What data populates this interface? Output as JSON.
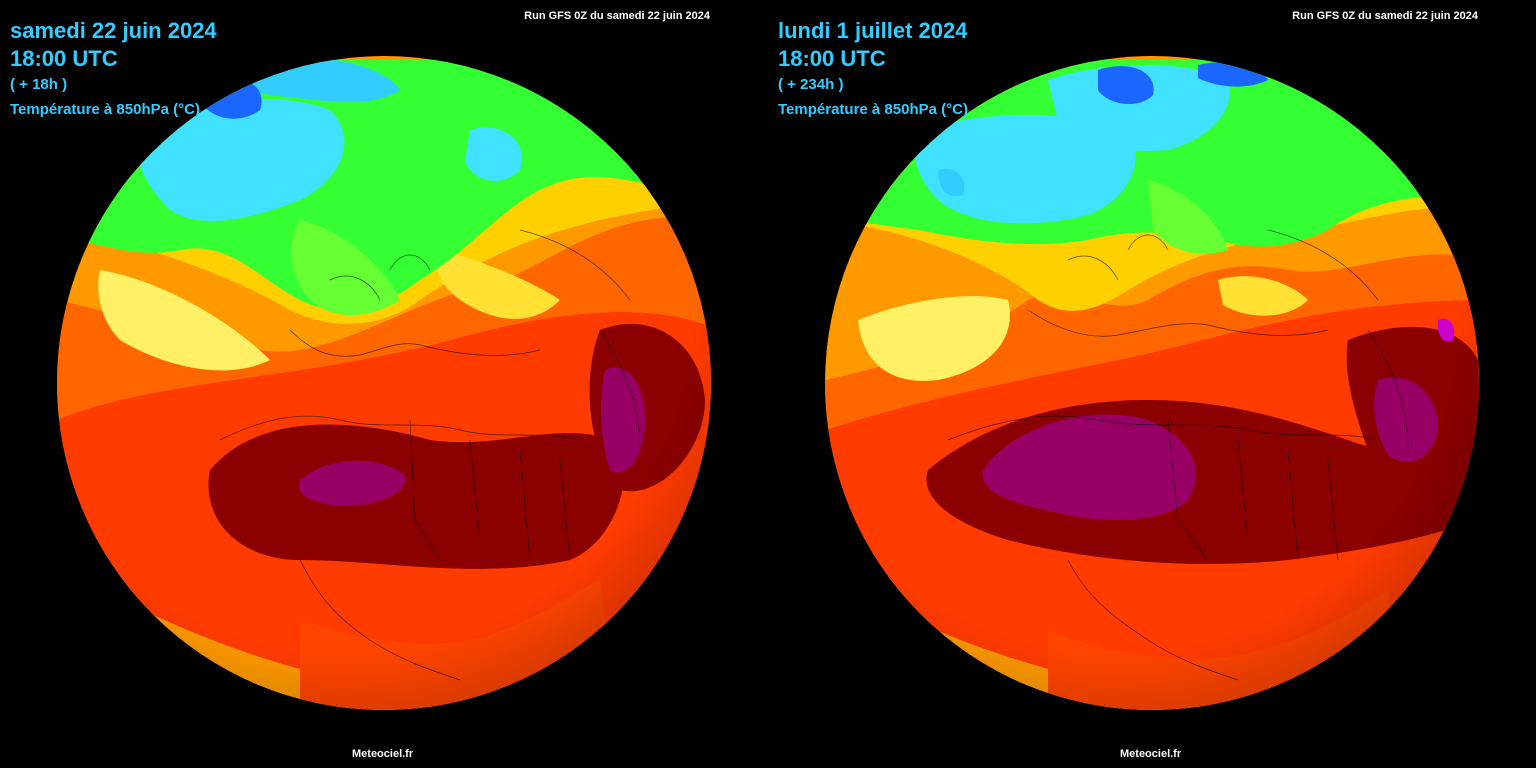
{
  "panels": [
    {
      "date": "samedi 22 juin 2024",
      "time": "18:00 UTC",
      "offset": "( + 18h )",
      "parameter": "Température à 850hPa (°C)",
      "run": "Run GFS 0Z  du samedi 22 juin 2024",
      "credit": "Meteociel.fr"
    },
    {
      "date": "lundi 1 juillet 2024",
      "time": "18:00 UTC",
      "offset": "( + 234h )",
      "parameter": "Température à 850hPa (°C)",
      "run": "Run GFS 0Z  du samedi 22 juin 2024",
      "credit": "Meteociel.fr"
    }
  ],
  "colors": {
    "text_accent": "#33ccff",
    "background": "#000000",
    "cold_blue": "#1a66ff",
    "cyan": "#40e0ff",
    "green": "#33ff33",
    "yellow": "#ffff33",
    "orange": "#ff9900",
    "red": "#ff2a00",
    "dark_red": "#800000",
    "purple": "#990066"
  }
}
